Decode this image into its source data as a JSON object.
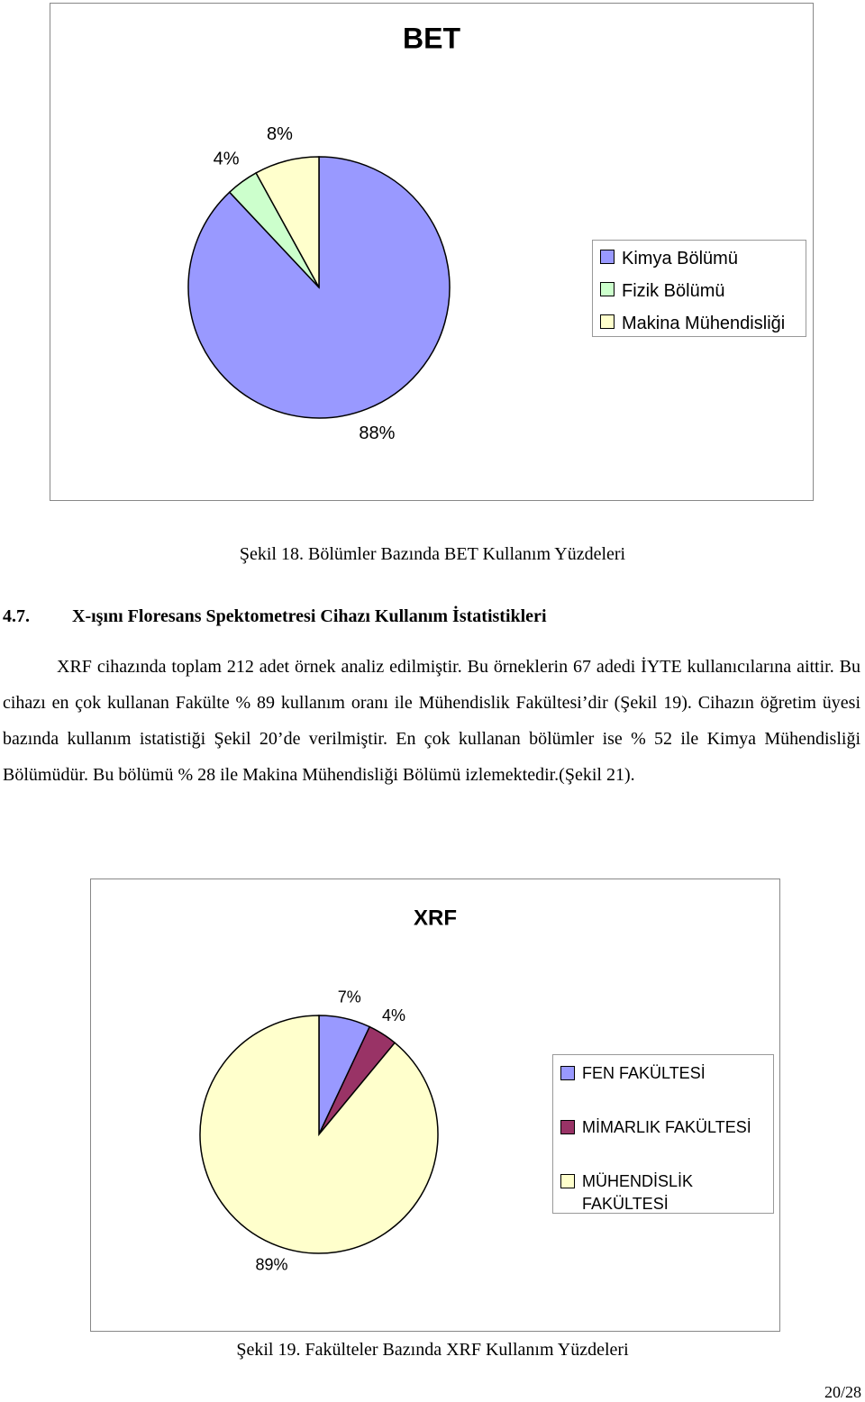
{
  "chart_data": [
    {
      "type": "pie",
      "title": "BET",
      "categories": [
        "Kimya Bölümü",
        "Fizik Bölümü",
        "Makina Mühendisliği"
      ],
      "values": [
        88,
        4,
        8
      ],
      "value_labels": [
        "88%",
        "4%",
        "8%"
      ],
      "colors": [
        "#9999ff",
        "#ccffcc",
        "#ffffcc"
      ],
      "legend": "right"
    },
    {
      "type": "pie",
      "title": "XRF",
      "categories": [
        "FEN FAKÜLTESİ",
        "MİMARLIK FAKÜLTESİ",
        "MÜHENDİSLİK FAKÜLTESİ"
      ],
      "values": [
        7,
        4,
        89
      ],
      "value_labels": [
        "7%",
        "4%",
        "89%"
      ],
      "colors": [
        "#9999ff",
        "#993366",
        "#ffffcc"
      ],
      "legend": "right"
    }
  ],
  "captions": [
    "Şekil 18. Bölümler Bazında BET Kullanım Yüzdeleri",
    "Şekil 19. Fakülteler Bazında XRF Kullanım Yüzdeleri"
  ],
  "section": {
    "number": "4.7.",
    "title": "X-ışını Floresans Spektometresi Cihazı Kullanım İstatistikleri"
  },
  "paragraph": "XRF cihazında toplam 212 adet örnek analiz edilmiştir. Bu örneklerin 67 adedi İYTE kullanıcılarına aittir. Bu cihazı en çok kullanan Fakülte % 89 kullanım oranı ile Mühendislik Fakültesi’dir (Şekil 19). Cihazın öğretim üyesi bazında kullanım istatistiği Şekil 20’de verilmiştir. En çok kullanan bölümler ise % 52 ile Kimya Mühendisliği Bölümüdür. Bu bölümü % 28 ile Makina Mühendisliği Bölümü izlemektedir.(Şekil 21).",
  "page_number": "20/28"
}
